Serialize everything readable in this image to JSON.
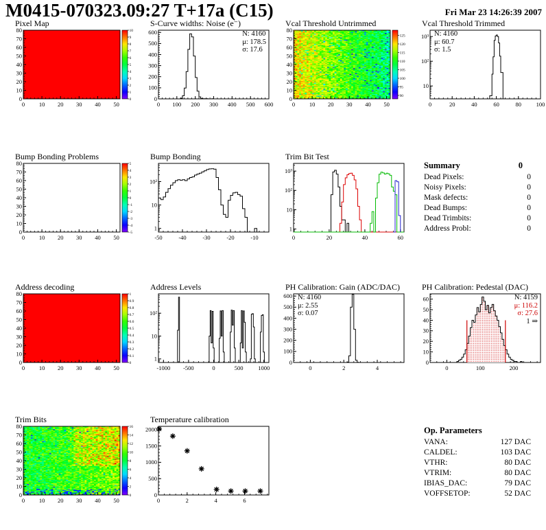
{
  "header": {
    "title": "M0415-070323.09:27 T+17a (C15)",
    "date": "Fri Mar 23 14:26:39 2007"
  },
  "summary": {
    "title": "Summary",
    "value": "0",
    "rows": [
      {
        "label": "Dead Pixels:",
        "value": "0"
      },
      {
        "label": "Noisy Pixels:",
        "value": "0"
      },
      {
        "label": "Mask defects:",
        "value": "0"
      },
      {
        "label": "Dead Bumps:",
        "value": "0"
      },
      {
        "label": "Dead Trimbits:",
        "value": "0"
      },
      {
        "label": "Address Probl:",
        "value": "0"
      }
    ]
  },
  "op_parameters": {
    "title": "Op. Parameters",
    "rows": [
      {
        "label": "VANA:",
        "value": "127 DAC"
      },
      {
        "label": "CALDEL:",
        "value": "103 DAC"
      },
      {
        "label": "VTHR:",
        "value": "80 DAC"
      },
      {
        "label": "VTRIM:",
        "value": "80 DAC"
      },
      {
        "label": "IBIAS_DAC:",
        "value": "79 DAC"
      },
      {
        "label": "VOFFSETOP:",
        "value": "52 DAC"
      }
    ]
  },
  "colors": {
    "hist_line": "#000000",
    "accent_red": "#cc0000",
    "trim_red": "#dd0000",
    "trim_green": "#00bb00",
    "trim_blue": "#2222cc",
    "heatmap_red": "#ff0000"
  },
  "chart_data": [
    {
      "id": "pixel_map",
      "type": "heatmap",
      "title": "Pixel Map",
      "xlim": [
        0,
        52
      ],
      "ylim": [
        0,
        80
      ],
      "xticks": [
        0,
        10,
        20,
        30,
        40,
        50
      ],
      "yticks": [
        0,
        10,
        20,
        30,
        40,
        50,
        60,
        70,
        80
      ],
      "zrange": [
        0,
        10
      ],
      "uniform_value": 10,
      "colorbar": {
        "labels": [
          10,
          9,
          8,
          7,
          6,
          5,
          4,
          3,
          2,
          1,
          0
        ]
      }
    },
    {
      "id": "scurve",
      "type": "hist",
      "title": "S-Curve widths: Noise (e⁻)",
      "xlim": [
        0,
        600
      ],
      "ylim": [
        0,
        620
      ],
      "xticks": [
        0,
        100,
        200,
        300,
        400,
        500,
        600
      ],
      "yticks": [
        0,
        100,
        200,
        300,
        400,
        500,
        600
      ],
      "stats": [
        "N: 4160",
        "μ: 178.5",
        "σ: 17.6"
      ],
      "series": [
        {
          "color": "#000000",
          "segments": [
            {
              "x0": 120,
              "w": 10,
              "v": [
                6,
                28,
                98,
                246,
                447,
                588,
                560,
                387,
                193,
                70,
                18,
                4,
                2,
                1,
                1,
                0,
                0,
                1
              ]
            }
          ]
        }
      ]
    },
    {
      "id": "vcal_untrimmed",
      "type": "heatmap",
      "title": "Vcal Threshold Untrimmed",
      "xlim": [
        0,
        52
      ],
      "ylim": [
        0,
        80
      ],
      "xticks": [
        0,
        10,
        20,
        30,
        40,
        50
      ],
      "yticks": [
        0,
        10,
        20,
        30,
        40,
        50,
        60,
        70,
        80
      ],
      "zrange": [
        88,
        128
      ],
      "noise": {
        "seed": 20070323,
        "base": 120,
        "x_slope": -14,
        "jitter": 10,
        "speckle_prob": 0.05,
        "speckle_delta": -14
      },
      "colorbar": {
        "labels": [
          125,
          120,
          115,
          110,
          105,
          100,
          95,
          90
        ]
      }
    },
    {
      "id": "vcal_trimmed",
      "type": "hist",
      "title": "Vcal Threshold Trimmed",
      "ylog": true,
      "xlim": [
        0,
        100
      ],
      "ylim": [
        3,
        1800
      ],
      "xticks": [
        0,
        20,
        40,
        60,
        80,
        100
      ],
      "stats": [
        "N: 4160",
        "μ: 60.7",
        "σ: 1.5"
      ],
      "series": [
        {
          "color": "#000000",
          "segments": [
            {
              "x0": 54,
              "w": 1,
              "v": [
                4,
                4,
                30,
                150,
                700,
                1050,
                1150,
                1000,
                550,
                160,
                35,
                35
              ]
            }
          ]
        }
      ]
    },
    {
      "id": "bump_problems",
      "type": "heatmap",
      "title": "Bump Bonding Problems",
      "xlim": [
        0,
        52
      ],
      "ylim": [
        0,
        80
      ],
      "xticks": [
        0,
        10,
        20,
        30,
        40,
        50
      ],
      "yticks": [
        0,
        10,
        20,
        30,
        40,
        50,
        60,
        70,
        80
      ],
      "zrange": [
        -5,
        5
      ],
      "uniform_value": null,
      "colorbar": {
        "labels": [
          5,
          4,
          3,
          2,
          1,
          0,
          -1,
          -2,
          -3,
          -4,
          -5
        ]
      }
    },
    {
      "id": "bump_bonding",
      "type": "hist",
      "title": "Bump Bonding",
      "ylog": true,
      "xlim": [
        -50,
        -4
      ],
      "ylim": [
        0.7,
        600
      ],
      "xticks": [
        -50,
        -40,
        -30,
        -20,
        -10
      ],
      "series": [
        {
          "color": "#000000",
          "segments": [
            {
              "x0": -50,
              "w": 1,
              "v": [
                20,
                17,
                22,
                35,
                50,
                70,
                90,
                110,
                120,
                115,
                120,
                110,
                130,
                150,
                160,
                190,
                210,
                230,
                260,
                290,
                330,
                350,
                355,
                340,
                150,
                45,
                10,
                4,
                3,
                16,
                26,
                33,
                35,
                28,
                24,
                7,
                3,
                0,
                0,
                0,
                1
              ]
            }
          ]
        }
      ]
    },
    {
      "id": "trim_bit_test",
      "type": "hist",
      "title": "Trim Bit Test",
      "ylog": true,
      "xlim": [
        0,
        62
      ],
      "ylim": [
        0.7,
        2500
      ],
      "xticks": [
        0,
        20,
        40,
        60
      ],
      "series": [
        {
          "color": "#000000",
          "segments": [
            {
              "x0": 21,
              "w": 1,
              "v": [
                60,
                900,
                1100,
                700,
                150,
                15,
                3,
                3,
                0,
                2
              ]
            }
          ]
        },
        {
          "color": "#dd0000",
          "segments": [
            {
              "x0": 26,
              "w": 1,
              "v": [
                2,
                25,
                200,
                450,
                650,
                750,
                780,
                600,
                350,
                120,
                15,
                3
              ]
            }
          ]
        },
        {
          "color": "#00bb00",
          "segments": [
            {
              "x0": 43,
              "w": 1,
              "v": [
                2,
                8,
                0,
                40,
                250,
                700,
                880,
                800,
                700,
                780,
                720,
                600,
                150,
                90,
                60
              ]
            }
          ]
        },
        {
          "color": "#2222cc",
          "no_baseline": true,
          "segments": [
            {
              "x0": 56,
              "w": 1,
              "v": [
                0,
                320,
                280,
                5
              ]
            }
          ]
        }
      ]
    },
    {
      "id": "address_decoding",
      "type": "heatmap",
      "title": "Address decoding",
      "xlim": [
        0,
        52
      ],
      "ylim": [
        0,
        80
      ],
      "xticks": [
        0,
        10,
        20,
        30,
        40,
        50
      ],
      "yticks": [
        0,
        10,
        20,
        30,
        40,
        50,
        60,
        70,
        80
      ],
      "zrange": [
        0,
        1
      ],
      "uniform_value": 1,
      "colorbar": {
        "labels": [
          1,
          0.9,
          0.8,
          0.7,
          0.6,
          0.5,
          0.4,
          0.3,
          0.2,
          0.1,
          0
        ]
      }
    },
    {
      "id": "address_levels",
      "type": "hist",
      "title": "Address Levels",
      "ylog": true,
      "xlim": [
        -1100,
        1100
      ],
      "ylim": [
        0.7,
        700
      ],
      "xticks": [
        -1000,
        -500,
        0,
        500,
        1000
      ],
      "series": [
        {
          "color": "#000000",
          "segments": [
            {
              "x0": -720,
              "w": 20,
              "v": [
                18,
                500
              ]
            },
            {
              "x0": -90,
              "w": 20,
              "v": [
                10,
                130,
                5,
                120,
                3
              ]
            },
            {
              "x0": 110,
              "w": 20,
              "v": [
                8,
                125,
                10,
                130,
                2
              ]
            },
            {
              "x0": 330,
              "w": 20,
              "v": [
                15,
                135,
                30,
                130,
                3
              ]
            },
            {
              "x0": 530,
              "w": 20,
              "v": [
                5,
                130,
                3,
                125,
                40,
                2
              ]
            },
            {
              "x0": 730,
              "w": 20,
              "v": [
                1,
                90,
                95,
                25,
                1
              ]
            },
            {
              "x0": 930,
              "w": 20,
              "v": [
                15,
                80,
                85,
                2
              ]
            }
          ]
        }
      ]
    },
    {
      "id": "ph_gain",
      "type": "hist",
      "title": "PH Calibration: Gain (ADC/DAC)",
      "xlim": [
        -1,
        5.6
      ],
      "ylim": [
        0,
        620
      ],
      "xticks": [
        0,
        2,
        4
      ],
      "yticks": [
        0,
        100,
        200,
        300,
        400,
        500,
        600
      ],
      "stats": [
        "N: 4160",
        "μ: 2.55",
        "σ: 0.07"
      ],
      "series": [
        {
          "color": "#000000",
          "segments": [
            {
              "x0": 2.2,
              "w": 0.1,
              "v": [
                3,
                60,
                500,
                615,
                300,
                20,
                2
              ]
            }
          ]
        }
      ]
    },
    {
      "id": "ph_pedestal",
      "type": "hist",
      "title": "PH Calibration: Pedestal (DAC)",
      "xlim": [
        -50,
        280
      ],
      "ylim": [
        0,
        65
      ],
      "xticks": [
        0,
        100,
        200
      ],
      "yticks": [
        0,
        10,
        20,
        30,
        40,
        50,
        60
      ],
      "stats": [
        "N: 4159",
        "μ: 116.2",
        "σ: 27.6",
        "1 ⇒"
      ],
      "fill_between": {
        "x1": 60,
        "x2": 175
      },
      "marker_lines": [
        {
          "x": 60,
          "y": 40,
          "color": "#cc0000"
        },
        {
          "x": 175,
          "y": 40,
          "color": "#cc0000"
        }
      ],
      "series": [
        {
          "color": "#000000",
          "segments": [
            {
              "x0": 30,
              "w": 5,
              "v": [
                1,
                2,
                3,
                5,
                8,
                12,
                18,
                25,
                33,
                40,
                38,
                45,
                52,
                48,
                55,
                62,
                58,
                50,
                54,
                47,
                52,
                55,
                49,
                44,
                40,
                34,
                28,
                22,
                16,
                12,
                8,
                5,
                3,
                2,
                1,
                1,
                0,
                0,
                1,
                0
              ]
            }
          ]
        }
      ]
    },
    {
      "id": "trim_bits",
      "type": "heatmap",
      "title": "Trim Bits",
      "xlim": [
        0,
        52
      ],
      "ylim": [
        0,
        80
      ],
      "xticks": [
        0,
        10,
        20,
        30,
        40,
        50
      ],
      "yticks": [
        0,
        10,
        20,
        30,
        40,
        50,
        60,
        70,
        80
      ],
      "zrange": [
        0,
        16
      ],
      "noise": {
        "seed": 415,
        "base": 8.5,
        "x_slope": 2,
        "jitter": 4.5,
        "speckle_prob": 0.012,
        "speckle_delta": -6,
        "patch": {
          "nx0": 0.5,
          "ny0": 0.42,
          "delta": 3.5
        },
        "bottom": {
          "ny": 0.08,
          "prob": 0.25,
          "value": 1.5
        }
      },
      "colorbar": {
        "labels": [
          16,
          14,
          12,
          10,
          8,
          6,
          4,
          2,
          0
        ]
      }
    },
    {
      "id": "temp_cal",
      "type": "scatter",
      "title": "Temperature calibration",
      "xlim": [
        0,
        7.7
      ],
      "ylim": [
        0,
        2100
      ],
      "xticks": [
        0,
        2,
        4,
        6
      ],
      "yticks": [
        0,
        500,
        1000,
        1500,
        2000
      ],
      "points": [
        [
          0.05,
          2020
        ],
        [
          1,
          1800
        ],
        [
          2,
          1350
        ],
        [
          3,
          800
        ],
        [
          4.05,
          170
        ],
        [
          5.05,
          120
        ],
        [
          6.05,
          120
        ],
        [
          7.1,
          120
        ]
      ]
    }
  ]
}
